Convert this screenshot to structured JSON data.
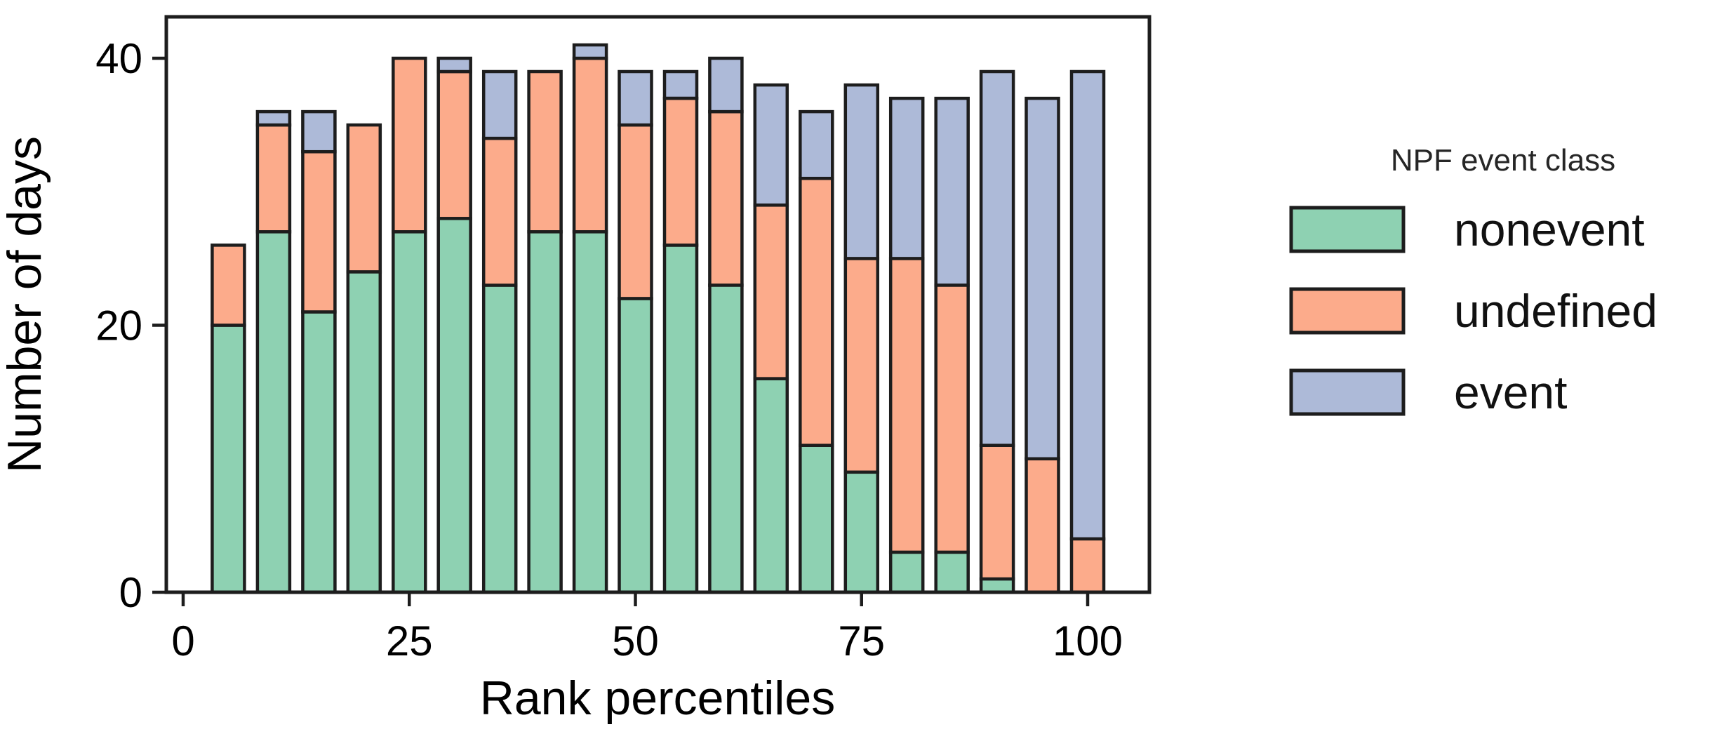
{
  "figure": {
    "background": "#ffffff"
  },
  "chart_data": {
    "type": "bar",
    "stacked": true,
    "title": "",
    "xlabel": "Rank percentiles",
    "ylabel": "Number of days",
    "categories": [
      5,
      10,
      15,
      20,
      25,
      30,
      35,
      40,
      45,
      50,
      55,
      60,
      65,
      70,
      75,
      80,
      85,
      90,
      95,
      100
    ],
    "series": [
      {
        "name": "nonevent",
        "color": "#8ed1b2",
        "values": [
          20,
          27,
          21,
          24,
          27,
          28,
          23,
          27,
          27,
          22,
          26,
          23,
          16,
          11,
          9,
          3,
          3,
          1,
          0,
          0
        ]
      },
      {
        "name": "undefined",
        "color": "#fcab8b",
        "values": [
          6,
          8,
          12,
          11,
          13,
          11,
          11,
          12,
          13,
          13,
          11,
          13,
          13,
          20,
          16,
          22,
          20,
          10,
          10,
          4
        ]
      },
      {
        "name": "event",
        "color": "#adbad8",
        "values": [
          0,
          1,
          3,
          0,
          0,
          1,
          5,
          0,
          1,
          4,
          2,
          4,
          9,
          5,
          13,
          12,
          14,
          28,
          27,
          35
        ]
      }
    ],
    "bar_totals": [
      26,
      36,
      36,
      35,
      40,
      40,
      39,
      39,
      41,
      39,
      39,
      40,
      38,
      36,
      38,
      37,
      37,
      39,
      37,
      39
    ],
    "x_ticks": [
      0,
      25,
      50,
      75,
      100
    ],
    "y_ticks": [
      0,
      20,
      40
    ],
    "xlim": [
      -2,
      107
    ],
    "ylim": [
      0,
      43.1
    ],
    "grid": false,
    "bar_edge_color": "#1d1d1d",
    "legend": {
      "position": "right",
      "title": "NPF event class",
      "entries": [
        {
          "label": "nonevent",
          "color": "#8ed1b2"
        },
        {
          "label": "undefined",
          "color": "#fcab8b"
        },
        {
          "label": "event",
          "color": "#adbad8"
        }
      ]
    }
  }
}
